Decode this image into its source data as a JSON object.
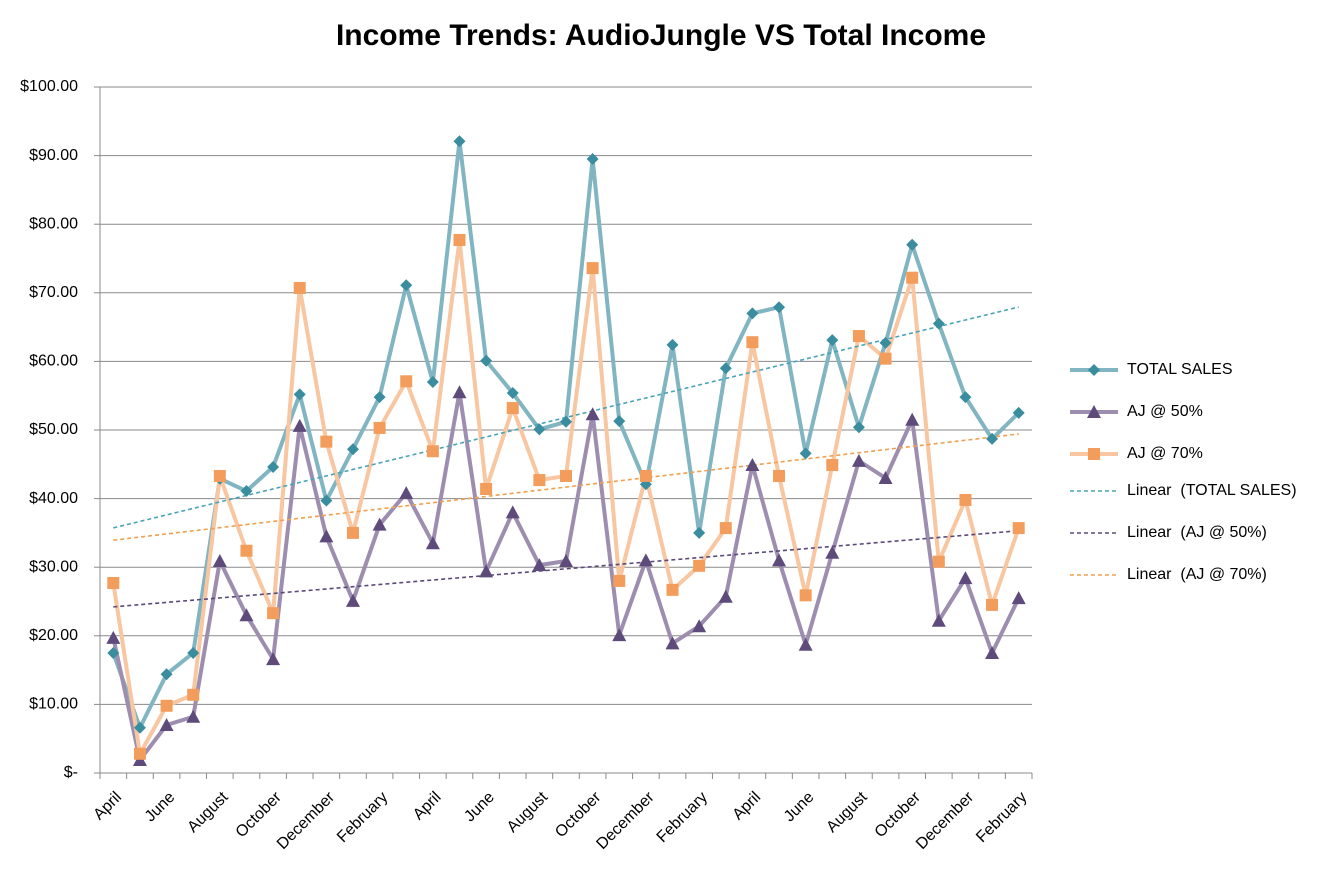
{
  "chart_data": {
    "type": "line",
    "title": "Income Trends: AudioJungle VS Total Income",
    "categories": [
      "April",
      null,
      "June",
      null,
      "August",
      null,
      "October",
      null,
      "December",
      null,
      "February",
      null,
      "April",
      null,
      "June",
      null,
      "August",
      null,
      "October",
      null,
      "December",
      null,
      "February",
      null,
      "April",
      null,
      "June",
      null,
      "August",
      null,
      "October",
      null,
      "December",
      null,
      "February"
    ],
    "series": [
      {
        "name": "TOTAL SALES",
        "color": "#80b5c1",
        "marker_color": "#3a8d9f",
        "marker": "diamond",
        "values": [
          17.5,
          6.6,
          14.4,
          17.5,
          42.9,
          41.1,
          44.6,
          55.2,
          39.7,
          47.2,
          54.8,
          71.1,
          57.0,
          92.1,
          60.1,
          55.4,
          50.1,
          51.2,
          89.5,
          51.3,
          42.1,
          62.4,
          35.0,
          59.0,
          67.0,
          67.9,
          46.6,
          63.1,
          50.4,
          62.7,
          77.0,
          65.5,
          54.8,
          48.7,
          52.5
        ],
        "trendline": {
          "name": "Linear  (TOTAL SALES)",
          "color": "#4aa3b6"
        }
      },
      {
        "name": "AJ @ 50%",
        "color": "#9d8eb0",
        "marker_color": "#5e4b7c",
        "marker": "triangle",
        "values": [
          19.7,
          1.9,
          7.0,
          8.2,
          30.9,
          23.0,
          16.6,
          50.6,
          34.5,
          25.1,
          36.2,
          40.8,
          33.5,
          55.5,
          29.4,
          38.0,
          30.3,
          30.9,
          52.3,
          20.1,
          31.0,
          18.9,
          21.4,
          25.7,
          44.9,
          31.0,
          18.7,
          32.1,
          45.5,
          43.0,
          51.5,
          22.2,
          28.4,
          17.5,
          25.5
        ],
        "trendline": {
          "name": "Linear  (AJ @ 50%)",
          "color": "#5a4a7a"
        }
      },
      {
        "name": "AJ @ 70%",
        "color": "#f8c6a0",
        "marker_color": "#f29d5c",
        "marker": "square",
        "values": [
          27.7,
          2.8,
          9.8,
          11.4,
          43.3,
          32.4,
          23.3,
          70.7,
          48.3,
          35.0,
          50.3,
          57.1,
          46.9,
          77.7,
          41.4,
          53.2,
          42.7,
          43.3,
          73.6,
          28.0,
          43.3,
          26.7,
          30.2,
          35.7,
          62.8,
          43.3,
          25.9,
          44.9,
          63.7,
          60.4,
          72.2,
          30.8,
          39.8,
          24.5,
          35.7
        ],
        "trendline": {
          "name": "Linear  (AJ @ 70%)",
          "color": "#f0a050"
        }
      }
    ],
    "ylim": [
      0,
      100
    ],
    "yticks": [
      {
        "value": 0,
        "label": "$-"
      },
      {
        "value": 10,
        "label": "$10.00"
      },
      {
        "value": 20,
        "label": "$20.00"
      },
      {
        "value": 30,
        "label": "$30.00"
      },
      {
        "value": 40,
        "label": "$40.00"
      },
      {
        "value": 50,
        "label": "$50.00"
      },
      {
        "value": 60,
        "label": "$60.00"
      },
      {
        "value": 70,
        "label": "$70.00"
      },
      {
        "value": 80,
        "label": "$80.00"
      },
      {
        "value": 90,
        "label": "$90.00"
      },
      {
        "value": 100,
        "label": "$100.00"
      }
    ],
    "grid": true,
    "legend": "right"
  }
}
